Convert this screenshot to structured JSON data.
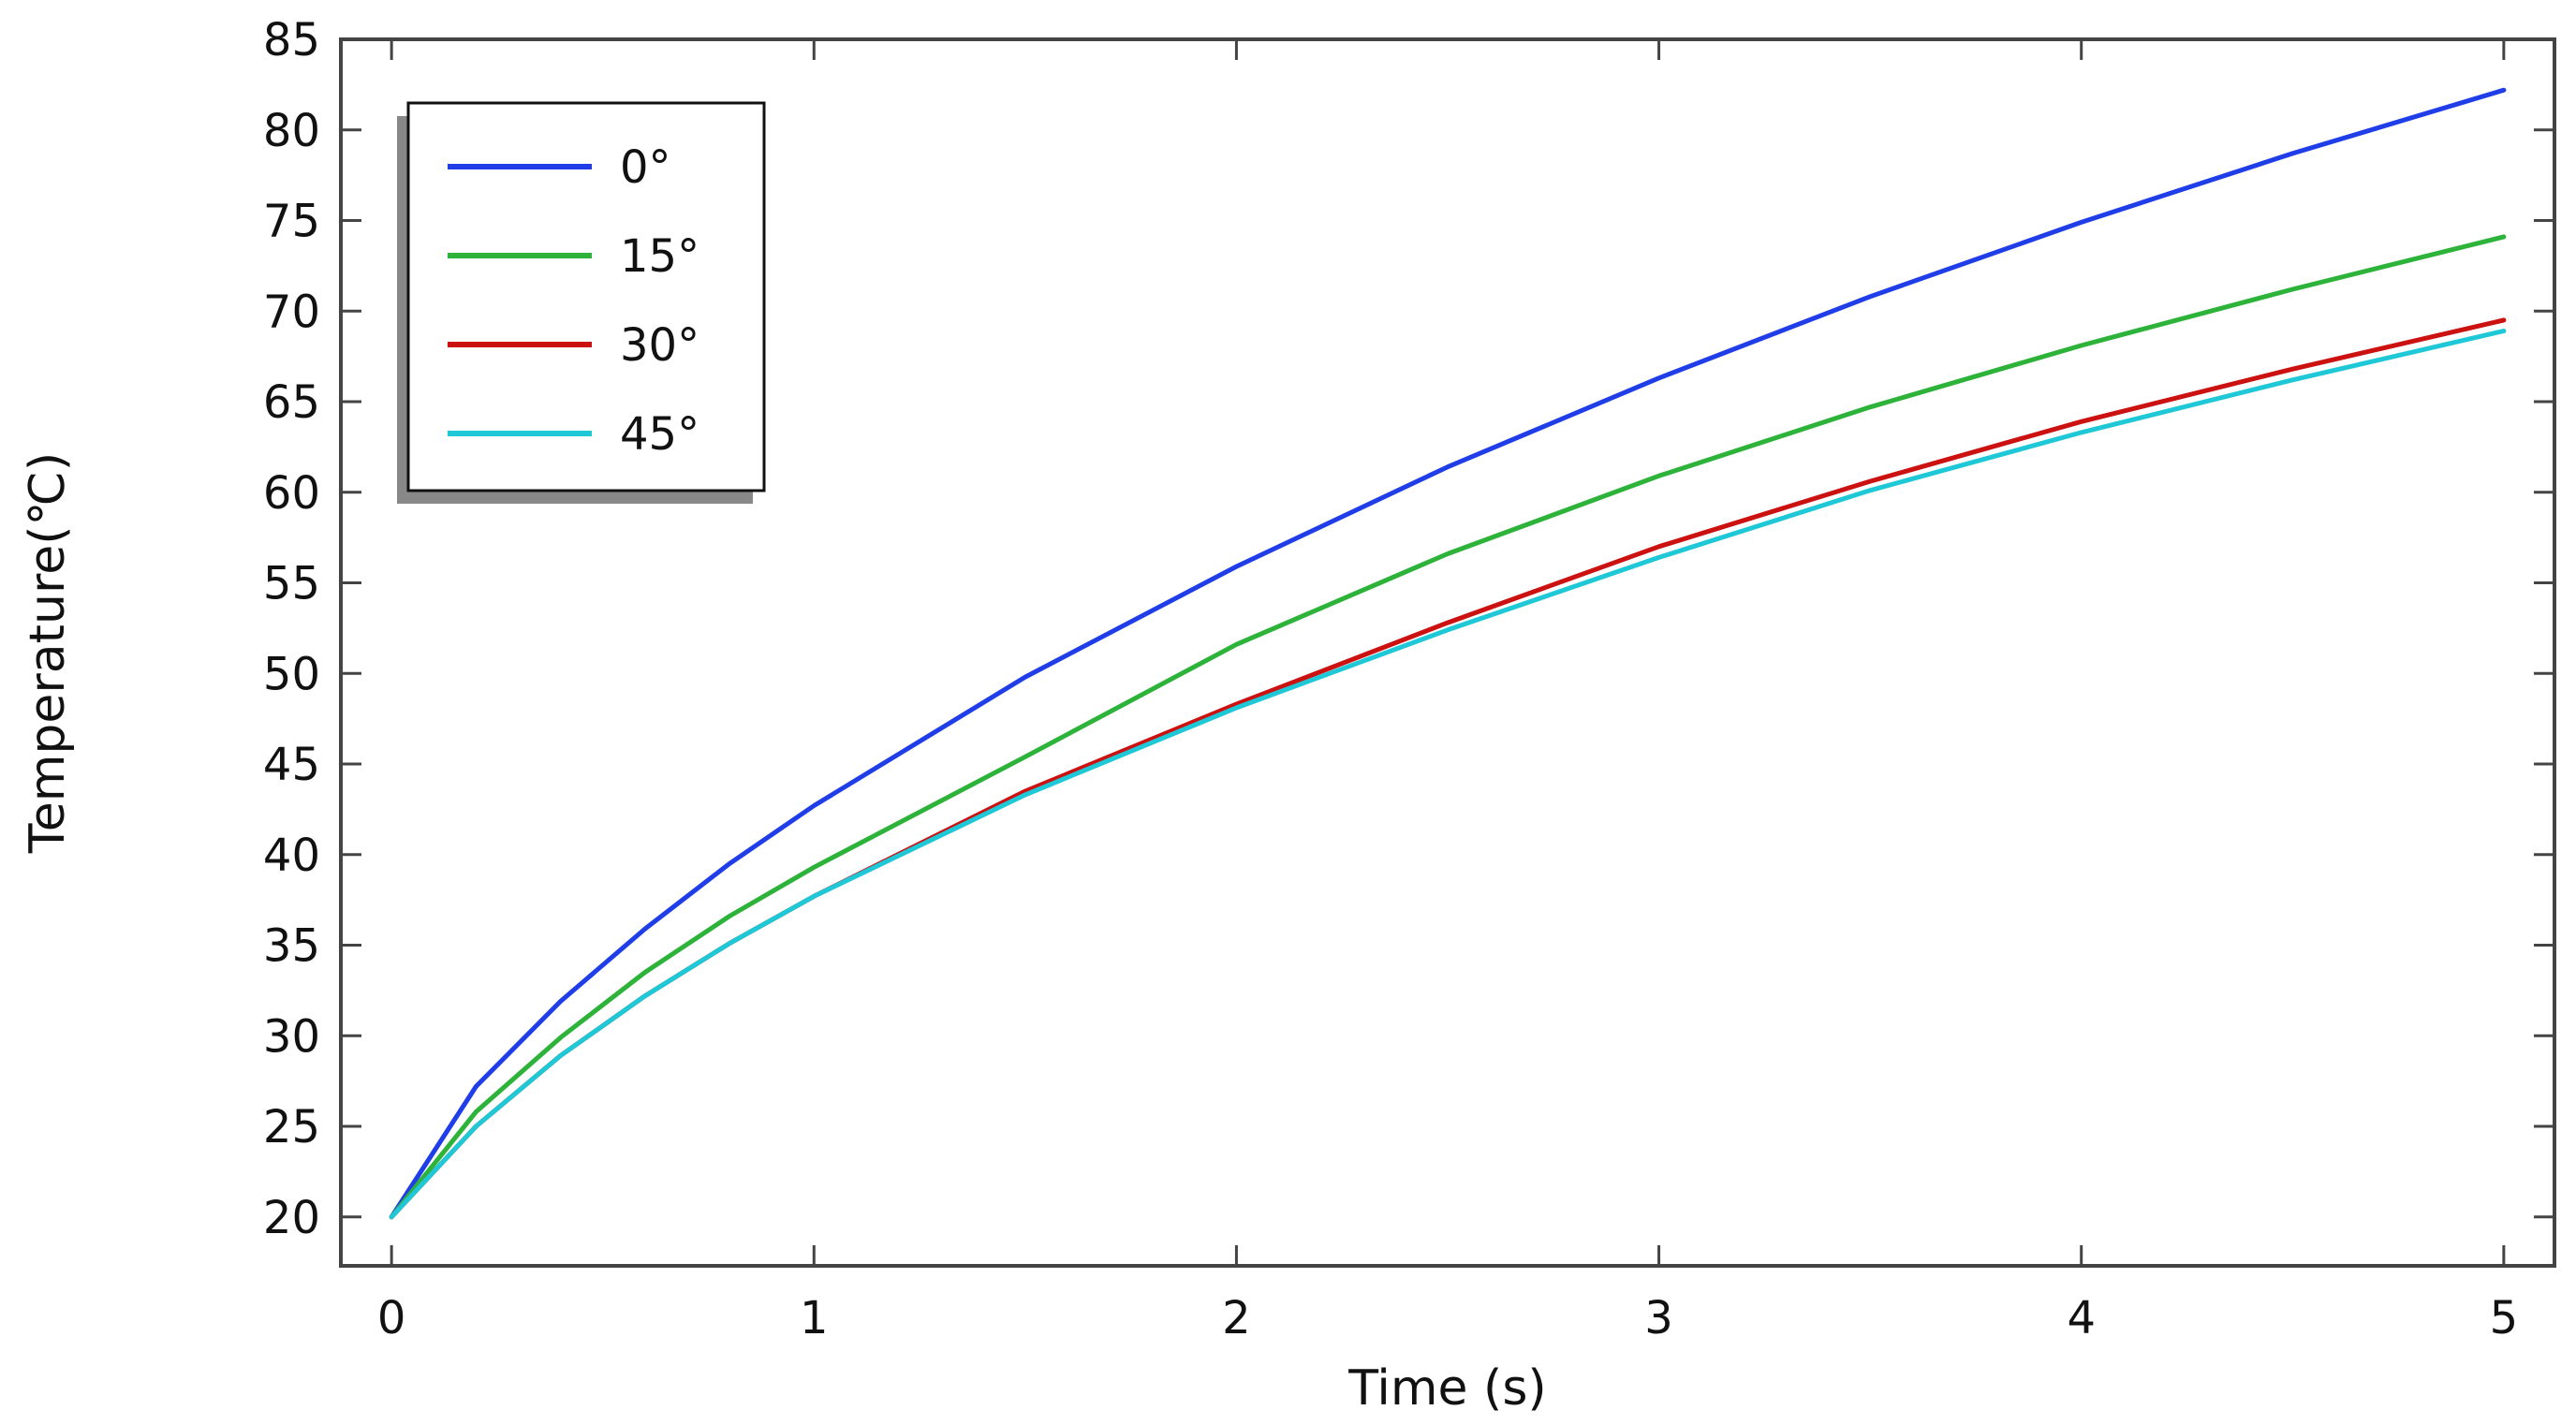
{
  "chart_data": {
    "type": "line",
    "xlabel": "Time (s)",
    "ylabel": "Temperature(℃)",
    "xlim": [
      -0.12,
      5.12
    ],
    "ylim": [
      17.3,
      85
    ],
    "x_ticks": [
      0,
      1,
      2,
      3,
      4,
      5
    ],
    "y_ticks": [
      20,
      25,
      30,
      35,
      40,
      45,
      50,
      55,
      60,
      65,
      70,
      75,
      80,
      85
    ],
    "grid": false,
    "legend_position": "top-left",
    "x": [
      0,
      0.2,
      0.4,
      0.6,
      0.8,
      1.0,
      1.5,
      2.0,
      2.5,
      3.0,
      3.5,
      4.0,
      4.5,
      5.0
    ],
    "series": [
      {
        "name": "0°",
        "color": "#1f3ee8",
        "values": [
          20,
          27.2,
          31.9,
          35.9,
          39.5,
          42.7,
          49.8,
          55.9,
          61.4,
          66.3,
          70.8,
          74.9,
          78.7,
          82.2
        ]
      },
      {
        "name": "15°",
        "color": "#2eb33a",
        "values": [
          20,
          25.8,
          29.9,
          33.5,
          36.6,
          39.3,
          45.4,
          51.6,
          56.6,
          60.9,
          64.7,
          68.1,
          71.2,
          74.1
        ]
      },
      {
        "name": "30°",
        "color": "#cc1111",
        "values": [
          20,
          25.0,
          28.9,
          32.2,
          35.1,
          37.7,
          43.5,
          48.3,
          52.8,
          57.0,
          60.6,
          63.9,
          66.8,
          69.5
        ]
      },
      {
        "name": "45°",
        "color": "#1ec8d6",
        "values": [
          20,
          25.0,
          28.9,
          32.2,
          35.1,
          37.7,
          43.3,
          48.1,
          52.4,
          56.4,
          60.1,
          63.3,
          66.2,
          68.9
        ]
      }
    ]
  }
}
